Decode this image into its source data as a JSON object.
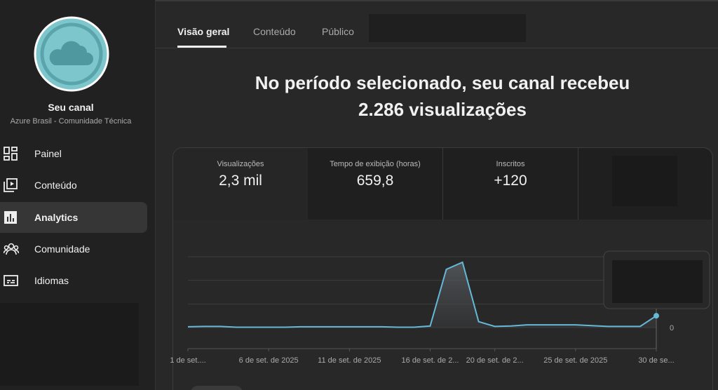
{
  "sidebar": {
    "channel_name": "Seu canal",
    "channel_subtitle": "Azure Brasil - Comunidade Técnica",
    "nav": [
      "Painel",
      "Conteúdo",
      "Analytics",
      "Comunidade",
      "Idiomas"
    ]
  },
  "tabs": [
    "Visão geral",
    "Conteúdo",
    "Público"
  ],
  "headline": [
    "No período selecionado, seu canal recebeu",
    "2.286 visualizações"
  ],
  "metrics": [
    {
      "label": "Visualizações",
      "value": "2,3 mil"
    },
    {
      "label": "Tempo de exibição (horas)",
      "value": "659,8"
    },
    {
      "label": "Inscritos",
      "value": "+120"
    }
  ],
  "chart_data": {
    "type": "line",
    "categories": [
      "1 de set....",
      null,
      null,
      null,
      null,
      "6 de set. de 2025",
      null,
      null,
      null,
      null,
      "11 de set. de 2025",
      null,
      null,
      null,
      null,
      "16 de set. de 2...",
      null,
      null,
      null,
      "20 de set. de 2...",
      null,
      null,
      null,
      null,
      "25 de set. de 2025",
      null,
      null,
      null,
      null,
      "30 de se..."
    ],
    "values": [
      10,
      15,
      15,
      5,
      5,
      5,
      5,
      10,
      10,
      10,
      10,
      10,
      10,
      5,
      5,
      20,
      740,
      830,
      75,
      15,
      20,
      35,
      35,
      35,
      35,
      25,
      15,
      15,
      15,
      150
    ],
    "color": "#65b8d8",
    "ylim": [
      0,
      900
    ],
    "yticks": [
      0
    ],
    "grid": true
  }
}
